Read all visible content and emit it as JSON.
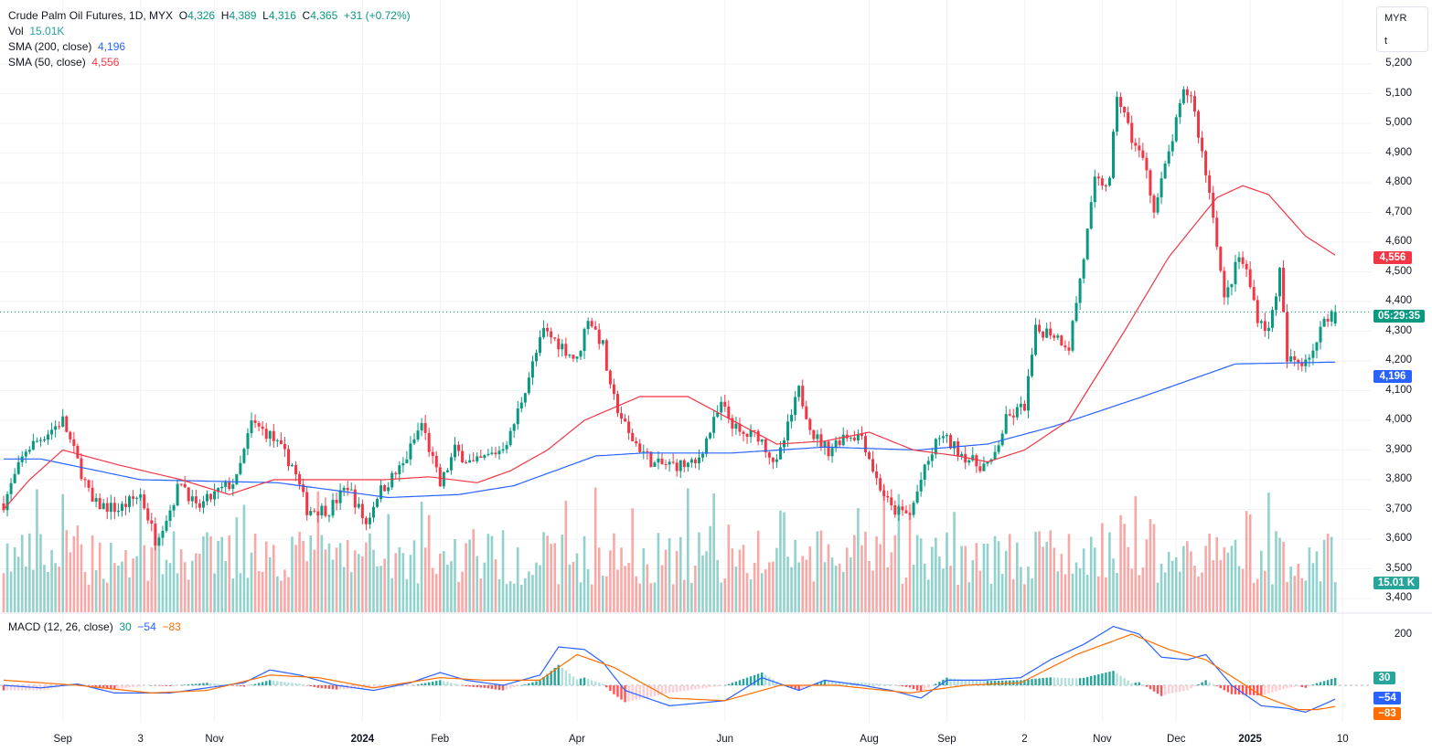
{
  "header": {
    "symbol": "Crude Palm Oil Futures, 1D, MYX",
    "o_label": "O",
    "o": "4,326",
    "h_label": "H",
    "h": "4,389",
    "l_label": "L",
    "l": "4,316",
    "c_label": "C",
    "c": "4,365",
    "change": "+31 (+0.72%)"
  },
  "vol": {
    "label": "Vol",
    "value": "15.01K"
  },
  "sma200": {
    "label": "SMA (200, close)",
    "value": "4,196"
  },
  "sma50": {
    "label": "SMA (50, close)",
    "value": "4,556"
  },
  "macd": {
    "label": "MACD (12, 26, close)",
    "hist": "30",
    "macd": "−54",
    "signal": "−83",
    "axis_200": "200"
  },
  "currency": {
    "line1": "MYR",
    "line2": "t"
  },
  "countdown": "05:29:35",
  "tags": {
    "sma50": "4,556",
    "sma200": "4,196",
    "vol": "15.01 K",
    "hist": "30",
    "macd": "−54",
    "signal": "−83"
  },
  "colors": {
    "up": "#089981",
    "down": "#f23645",
    "sma200": "#2962ff",
    "sma50": "#f23645",
    "signal": "#ff6d00"
  },
  "chart_data": {
    "type": "candlestick",
    "title": "Crude Palm Oil Futures, 1D, MYX",
    "ylabel": "MYR/t",
    "ylim": [
      3350,
      5250
    ],
    "price_ticks": [
      "5,200",
      "5,100",
      "5,000",
      "4,900",
      "4,800",
      "4,700",
      "4,600",
      "4,500",
      "4,400",
      "4,300",
      "4,200",
      "4,100",
      "4,000",
      "3,900",
      "3,800",
      "3,700",
      "3,600",
      "3,500",
      "3,400"
    ],
    "time_labels": [
      {
        "t": "Sep",
        "bar": 16
      },
      {
        "t": "3",
        "bar": 37
      },
      {
        "t": "Nov",
        "bar": 57
      },
      {
        "t": "2024",
        "bar": 97
      },
      {
        "t": "Feb",
        "bar": 118
      },
      {
        "t": "Apr",
        "bar": 155
      },
      {
        "t": "Jun",
        "bar": 195
      },
      {
        "t": "Aug",
        "bar": 234
      },
      {
        "t": "Sep",
        "bar": 255
      },
      {
        "t": "2",
        "bar": 276
      },
      {
        "t": "Nov",
        "bar": 297
      },
      {
        "t": "Dec",
        "bar": 317
      },
      {
        "t": "2025",
        "bar": 337
      },
      {
        "t": "10",
        "bar": 362
      }
    ],
    "bars": 361,
    "close_path": [
      [
        0,
        3720
      ],
      [
        6,
        3900
      ],
      [
        16,
        4000
      ],
      [
        24,
        3720
      ],
      [
        31,
        3700
      ],
      [
        37,
        3750
      ],
      [
        41,
        3600
      ],
      [
        45,
        3700
      ],
      [
        48,
        3800
      ],
      [
        52,
        3700
      ],
      [
        57,
        3750
      ],
      [
        63,
        3800
      ],
      [
        67,
        3990
      ],
      [
        72,
        3950
      ],
      [
        78,
        3850
      ],
      [
        82,
        3700
      ],
      [
        88,
        3700
      ],
      [
        93,
        3780
      ],
      [
        98,
        3650
      ],
      [
        101,
        3750
      ],
      [
        108,
        3850
      ],
      [
        113,
        3990
      ],
      [
        118,
        3780
      ],
      [
        122,
        3900
      ],
      [
        127,
        3850
      ],
      [
        134,
        3900
      ],
      [
        137,
        3950
      ],
      [
        142,
        4150
      ],
      [
        146,
        4300
      ],
      [
        151,
        4250
      ],
      [
        155,
        4200
      ],
      [
        158,
        4350
      ],
      [
        162,
        4250
      ],
      [
        164,
        4100
      ],
      [
        169,
        3950
      ],
      [
        176,
        3850
      ],
      [
        182,
        3850
      ],
      [
        187,
        3850
      ],
      [
        194,
        4050
      ],
      [
        199,
        3950
      ],
      [
        204,
        3950
      ],
      [
        209,
        3850
      ],
      [
        215,
        4100
      ],
      [
        219,
        3950
      ],
      [
        223,
        3900
      ],
      [
        227,
        3950
      ],
      [
        232,
        3950
      ],
      [
        236,
        3800
      ],
      [
        240,
        3700
      ],
      [
        245,
        3680
      ],
      [
        248,
        3800
      ],
      [
        253,
        3950
      ],
      [
        258,
        3900
      ],
      [
        263,
        3850
      ],
      [
        267,
        3850
      ],
      [
        271,
        4000
      ],
      [
        276,
        4050
      ],
      [
        279,
        4300
      ],
      [
        283,
        4300
      ],
      [
        288,
        4250
      ],
      [
        292,
        4550
      ],
      [
        295,
        4800
      ],
      [
        299,
        4800
      ],
      [
        301,
        5100
      ],
      [
        305,
        4950
      ],
      [
        309,
        4850
      ],
      [
        311,
        4700
      ],
      [
        315,
        4900
      ],
      [
        319,
        5100
      ],
      [
        321,
        5100
      ],
      [
        324,
        4900
      ],
      [
        327,
        4700
      ],
      [
        330,
        4400
      ],
      [
        334,
        4550
      ],
      [
        336,
        4500
      ],
      [
        339,
        4350
      ],
      [
        342,
        4300
      ],
      [
        345,
        4500
      ],
      [
        347,
        4200
      ],
      [
        351,
        4200
      ],
      [
        355,
        4250
      ],
      [
        357,
        4350
      ],
      [
        360,
        4365
      ]
    ],
    "last": {
      "open": 4326,
      "high": 4389,
      "low": 4316,
      "close": 4365,
      "volume": "15.01K"
    },
    "sma200": [
      [
        0,
        3870
      ],
      [
        10,
        3870
      ],
      [
        37,
        3800
      ],
      [
        74,
        3790
      ],
      [
        104,
        3740
      ],
      [
        123,
        3750
      ],
      [
        138,
        3780
      ],
      [
        160,
        3880
      ],
      [
        173,
        3890
      ],
      [
        197,
        3890
      ],
      [
        222,
        3910
      ],
      [
        247,
        3900
      ],
      [
        266,
        3920
      ],
      [
        284,
        3980
      ],
      [
        308,
        4080
      ],
      [
        333,
        4190
      ],
      [
        360,
        4196
      ]
    ],
    "sma50": [
      [
        0,
        3700
      ],
      [
        7,
        3800
      ],
      [
        16,
        3900
      ],
      [
        31,
        3850
      ],
      [
        48,
        3800
      ],
      [
        61,
        3750
      ],
      [
        73,
        3800
      ],
      [
        86,
        3800
      ],
      [
        103,
        3800
      ],
      [
        115,
        3810
      ],
      [
        128,
        3790
      ],
      [
        137,
        3830
      ],
      [
        147,
        3900
      ],
      [
        157,
        4000
      ],
      [
        172,
        4080
      ],
      [
        185,
        4080
      ],
      [
        197,
        4000
      ],
      [
        209,
        3920
      ],
      [
        222,
        3930
      ],
      [
        234,
        3960
      ],
      [
        246,
        3900
      ],
      [
        258,
        3880
      ],
      [
        266,
        3860
      ],
      [
        276,
        3900
      ],
      [
        288,
        4000
      ],
      [
        303,
        4300
      ],
      [
        315,
        4550
      ],
      [
        328,
        4750
      ],
      [
        335,
        4790
      ],
      [
        342,
        4760
      ],
      [
        352,
        4620
      ],
      [
        360,
        4556
      ]
    ],
    "macd_line": [
      [
        0,
        0
      ],
      [
        10,
        -10
      ],
      [
        20,
        5
      ],
      [
        30,
        -30
      ],
      [
        45,
        -30
      ],
      [
        55,
        -10
      ],
      [
        65,
        10
      ],
      [
        72,
        60
      ],
      [
        80,
        40
      ],
      [
        90,
        0
      ],
      [
        100,
        -20
      ],
      [
        110,
        10
      ],
      [
        118,
        50
      ],
      [
        125,
        20
      ],
      [
        135,
        0
      ],
      [
        145,
        40
      ],
      [
        150,
        150
      ],
      [
        157,
        140
      ],
      [
        162,
        90
      ],
      [
        168,
        -20
      ],
      [
        180,
        -80
      ],
      [
        195,
        -60
      ],
      [
        205,
        30
      ],
      [
        215,
        -20
      ],
      [
        222,
        20
      ],
      [
        232,
        0
      ],
      [
        240,
        -20
      ],
      [
        248,
        -50
      ],
      [
        255,
        20
      ],
      [
        265,
        20
      ],
      [
        275,
        30
      ],
      [
        283,
        100
      ],
      [
        292,
        160
      ],
      [
        300,
        230
      ],
      [
        307,
        200
      ],
      [
        313,
        110
      ],
      [
        320,
        100
      ],
      [
        325,
        120
      ],
      [
        332,
        0
      ],
      [
        340,
        -80
      ],
      [
        347,
        -90
      ],
      [
        352,
        -105
      ],
      [
        356,
        -80
      ],
      [
        360,
        -54
      ]
    ],
    "signal_line": [
      [
        0,
        20
      ],
      [
        20,
        0
      ],
      [
        40,
        -30
      ],
      [
        55,
        -20
      ],
      [
        72,
        40
      ],
      [
        85,
        30
      ],
      [
        100,
        -10
      ],
      [
        118,
        30
      ],
      [
        130,
        20
      ],
      [
        145,
        20
      ],
      [
        155,
        120
      ],
      [
        165,
        70
      ],
      [
        180,
        -50
      ],
      [
        195,
        -60
      ],
      [
        210,
        0
      ],
      [
        225,
        0
      ],
      [
        245,
        -30
      ],
      [
        260,
        0
      ],
      [
        275,
        10
      ],
      [
        290,
        120
      ],
      [
        305,
        200
      ],
      [
        315,
        140
      ],
      [
        325,
        100
      ],
      [
        340,
        -40
      ],
      [
        350,
        -95
      ],
      [
        355,
        -95
      ],
      [
        360,
        -83
      ]
    ]
  }
}
